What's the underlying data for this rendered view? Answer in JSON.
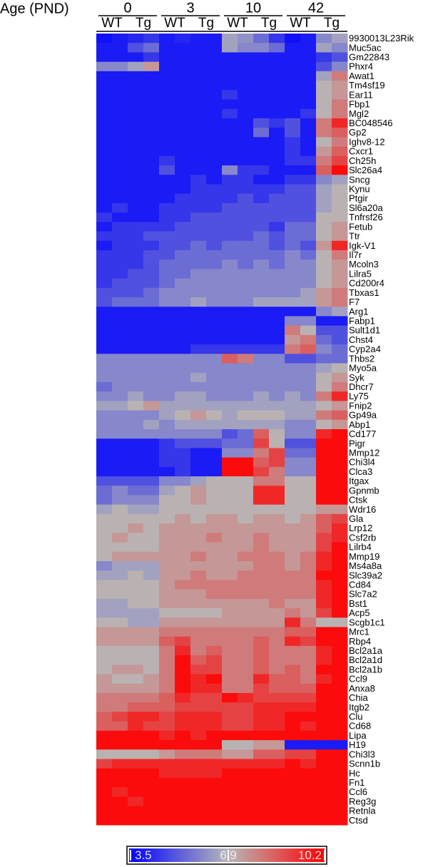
{
  "chart_data": {
    "type": "heatmap",
    "column_title": "Age (PND)",
    "groups": [
      "0",
      "3",
      "10",
      "42"
    ],
    "subgroups": [
      "WT",
      "Tg",
      "WT",
      "Tg",
      "WT",
      "Tg",
      "WT",
      "Tg"
    ],
    "rows": [
      "9930013L23Rik",
      "Muc5ac",
      "Gm22843",
      "Phxr4",
      "Awat1",
      "Tm4sf19",
      "Ear11",
      "Fbp1",
      "Mgl2",
      "BC048546",
      "Gp2",
      "Ighv8-12",
      "Cxcr1",
      "Ch25h",
      "Slc26a4",
      "Sncg",
      "Kynu",
      "Ptgir",
      "Sl6a20a",
      "Tnfrsf26",
      "Fetub",
      "Ttr",
      "Igk-V1",
      "Il7r",
      "Mcoln3",
      "Lilra5",
      "Cd200r4",
      "Tbxas1",
      "F7",
      "Arg1",
      "Fabp1",
      "Sult1d1",
      "Chst4",
      "Cyp2a4",
      "Thbs2",
      "Myo5a",
      "Syk",
      "Dhcr7",
      "Ly75",
      "Fnip2",
      "Gp49a",
      "Abp1",
      "Cd177",
      "Pigr",
      "Mmp12",
      "Chi3l4",
      "Clca3",
      "Itgax",
      "Gpnmb",
      "Ctsk",
      "Wdr16",
      "Gla",
      "Lrp12",
      "Csf2rb",
      "Lilrb4",
      "Mmp19",
      "Ms4a8a",
      "Slc39a2",
      "Cd84",
      "Slc7a2",
      "Bst1",
      "Acp5",
      "Scgb1c1",
      "Mrc1",
      "Rbp4",
      "Bcl2a1a",
      "Bcl2a1d",
      "Bcl2a1b",
      "Ccl9",
      "Anxa8",
      "Chia",
      "Itgb2",
      "Clu",
      "Cd68",
      "Lipa",
      "H19",
      "Chi3l3",
      "Scnn1b",
      "Hc",
      "Fn1",
      "Ccl6",
      "Reg3g",
      "Retnla",
      "Ctsd"
    ],
    "values": [
      [
        3.8,
        4,
        4.2,
        4.5,
        4,
        4.2,
        4,
        4,
        6.5,
        6.2,
        5.5,
        4.5,
        3.8,
        4,
        6,
        6.5
      ],
      [
        4,
        4,
        5,
        5.5,
        4,
        4,
        4,
        4,
        6.5,
        6,
        6,
        5.5,
        4,
        4,
        6.5,
        6
      ],
      [
        4,
        4,
        4,
        4.5,
        4,
        4,
        4,
        4,
        4,
        4,
        4,
        4,
        4,
        4,
        4.5,
        5
      ],
      [
        6,
        6,
        6.5,
        7.5,
        4,
        4,
        4,
        4,
        4,
        4,
        4,
        4,
        4,
        4,
        5,
        6
      ],
      [
        4,
        4,
        4,
        4,
        4,
        4,
        4,
        4,
        4,
        4,
        4,
        4,
        4,
        4,
        6.5,
        8
      ],
      [
        4,
        4,
        4,
        4,
        4,
        4,
        4,
        4,
        4,
        4,
        4,
        4,
        4,
        4,
        7,
        7.5
      ],
      [
        4,
        4,
        4,
        4,
        4,
        4,
        4,
        4,
        4.5,
        4,
        4,
        4,
        4,
        4,
        7,
        7.5
      ],
      [
        4,
        4,
        4,
        4,
        4,
        4,
        4,
        4,
        4,
        4,
        4,
        4,
        4,
        4,
        7,
        8
      ],
      [
        4,
        4,
        4,
        4,
        4,
        4,
        4,
        4,
        4.5,
        4,
        4,
        4,
        4,
        4.5,
        7,
        8
      ],
      [
        4,
        4,
        4,
        4,
        4,
        4,
        4,
        4,
        4,
        4,
        5,
        4.5,
        5,
        4,
        8,
        9.5
      ],
      [
        4,
        4,
        4,
        4,
        4,
        4,
        4,
        4,
        4,
        4,
        5.5,
        4,
        5,
        4,
        8,
        8.5
      ],
      [
        4,
        4,
        4,
        4,
        4,
        4,
        4,
        4,
        4,
        4,
        4,
        4,
        4.5,
        4,
        7,
        8
      ],
      [
        4,
        4,
        4,
        4,
        4,
        4,
        4,
        4,
        4,
        4,
        4,
        4,
        4.5,
        4,
        7.5,
        8.5
      ],
      [
        4,
        4,
        4,
        4,
        4.5,
        4,
        4,
        4,
        4,
        4,
        4,
        4,
        4.5,
        4.5,
        8,
        9
      ],
      [
        4,
        4,
        4,
        4,
        5,
        4,
        4,
        4,
        6,
        4.5,
        4.5,
        4,
        4,
        4,
        8.5,
        10
      ],
      [
        4,
        4,
        4,
        4,
        4,
        4,
        4.5,
        4,
        4.5,
        4.5,
        4,
        4,
        4.5,
        4.5,
        6,
        6.5
      ],
      [
        4,
        4,
        4,
        4,
        4,
        4,
        4.5,
        4.5,
        4.5,
        4.5,
        4.5,
        4.5,
        5,
        5,
        6.5,
        7
      ],
      [
        4,
        4,
        4,
        4,
        4,
        4.5,
        4.5,
        4.5,
        4.5,
        5,
        4.5,
        5,
        5,
        5,
        6.5,
        7
      ],
      [
        4,
        4.5,
        4,
        4,
        4.5,
        4.5,
        4.5,
        4.5,
        5,
        5,
        5,
        5,
        5,
        5,
        6.5,
        7
      ],
      [
        4.5,
        4,
        4,
        4,
        4.5,
        4.5,
        5,
        5,
        5,
        5,
        5,
        5,
        5,
        5,
        7,
        7
      ],
      [
        4,
        4.5,
        4.5,
        4.5,
        4.5,
        5,
        5,
        5,
        5,
        5,
        5,
        4.5,
        5.5,
        5.5,
        7,
        7.5
      ],
      [
        4.5,
        4.5,
        4.5,
        5,
        5,
        5,
        5,
        5,
        5,
        5,
        5.5,
        5,
        5.5,
        5.5,
        7,
        7.5
      ],
      [
        4,
        4.5,
        4.5,
        4.5,
        5,
        5,
        5.5,
        5,
        5.5,
        5.5,
        5.5,
        5,
        5.5,
        5,
        7.5,
        9.5
      ],
      [
        4.5,
        4.5,
        4.5,
        5,
        5,
        5.5,
        5.5,
        5.5,
        5.5,
        5.5,
        5.5,
        5.5,
        6,
        5.5,
        7,
        8
      ],
      [
        4.5,
        4.5,
        4.5,
        5,
        5.5,
        5.5,
        5.5,
        5.5,
        6,
        5.5,
        6,
        5.5,
        6,
        6,
        7,
        7.5
      ],
      [
        4.5,
        4.5,
        5,
        5,
        5.5,
        5.5,
        6,
        6,
        6,
        6,
        6,
        6,
        6,
        6,
        7,
        7.5
      ],
      [
        4.5,
        5,
        5,
        5,
        5.5,
        6,
        6,
        6,
        6,
        6,
        6,
        6,
        6,
        6,
        7,
        7.5
      ],
      [
        5,
        5,
        5,
        5.5,
        6,
        6,
        6,
        6,
        6,
        6,
        6,
        6,
        6,
        6.5,
        7.5,
        8
      ],
      [
        5,
        5.5,
        5.5,
        5.5,
        6,
        6,
        6.5,
        6,
        6,
        6,
        6.5,
        6.5,
        6.5,
        6.5,
        7.5,
        8
      ],
      [
        4,
        4,
        4,
        4,
        4,
        4,
        4,
        4,
        4,
        4,
        4,
        4,
        4,
        4,
        6,
        6.5
      ],
      [
        4,
        4,
        4,
        4,
        4,
        4,
        4,
        4,
        4,
        4,
        4,
        4,
        6,
        6,
        4,
        4
      ],
      [
        4,
        4,
        4,
        4,
        4,
        4,
        4,
        4,
        4,
        4,
        4,
        4,
        8,
        7,
        5,
        5
      ],
      [
        4,
        4,
        4,
        4,
        4,
        4,
        4,
        4,
        4,
        4,
        4,
        4,
        7.5,
        8,
        5.5,
        5
      ],
      [
        4,
        4,
        4,
        4,
        4,
        4,
        4.5,
        4.5,
        4.5,
        4.5,
        4.5,
        4.5,
        8,
        8.5,
        6,
        5.5
      ],
      [
        6,
        6,
        6,
        6,
        6,
        6,
        6,
        6,
        8.5,
        8,
        6,
        6,
        5,
        5,
        5.5,
        5.5
      ],
      [
        6,
        6,
        6,
        6,
        6,
        6,
        6,
        6,
        6,
        6,
        6,
        6,
        6,
        6,
        6.5,
        7
      ],
      [
        6,
        6,
        6,
        6,
        6,
        6,
        6.5,
        6,
        6,
        6,
        6,
        6,
        6,
        6,
        7,
        7.5
      ],
      [
        5.5,
        6,
        6,
        6,
        6,
        6,
        6,
        6,
        6,
        6,
        6,
        6,
        6,
        6,
        7,
        8
      ],
      [
        6,
        6,
        6.5,
        6,
        6,
        6.5,
        6.5,
        6,
        6,
        6,
        6.5,
        6,
        6.5,
        6,
        8,
        9.5
      ],
      [
        6.5,
        6.5,
        7,
        7.5,
        6.5,
        6.5,
        6.5,
        6.5,
        6.5,
        6.5,
        6.5,
        6.5,
        6.5,
        6.5,
        7,
        7.5
      ],
      [
        6,
        6,
        6,
        6,
        6.5,
        7,
        7.5,
        7,
        6.5,
        7,
        7,
        7,
        6.5,
        6.5,
        8,
        8.5
      ],
      [
        6,
        6,
        6,
        6.5,
        6,
        6.5,
        6.5,
        6.5,
        6.5,
        6.5,
        6.5,
        6.5,
        6,
        6,
        7,
        7.5
      ],
      [
        6,
        6,
        6,
        6,
        6,
        6,
        6,
        6,
        5,
        5.5,
        8.5,
        7,
        6,
        6,
        9.5,
        10
      ],
      [
        4,
        4,
        4,
        4,
        4.5,
        5,
        5,
        5,
        5.5,
        5.5,
        9,
        7,
        5,
        5,
        10,
        10
      ],
      [
        4,
        4,
        4,
        4,
        4.5,
        4.5,
        4,
        4,
        6,
        6,
        8,
        9,
        5.5,
        5.5,
        10,
        10
      ],
      [
        4,
        4,
        4,
        4,
        4.5,
        4.5,
        4,
        4,
        10,
        10,
        8.5,
        9,
        6,
        6,
        10,
        10
      ],
      [
        4,
        4,
        4,
        4,
        4,
        4.5,
        4,
        4,
        10,
        10,
        9,
        8,
        6,
        6,
        10,
        10
      ],
      [
        5,
        5,
        5,
        5,
        6,
        6,
        6.5,
        7,
        7,
        7,
        8,
        8,
        7,
        7,
        10,
        10
      ],
      [
        5.5,
        6,
        5.5,
        5.5,
        6.5,
        7,
        7.5,
        7,
        7,
        7,
        9.5,
        9.5,
        7,
        7,
        10,
        10
      ],
      [
        5.5,
        6,
        6,
        6,
        7,
        7,
        7.5,
        7,
        7,
        7,
        9.5,
        9.5,
        7,
        7,
        10,
        10
      ],
      [
        6.5,
        7,
        6.5,
        6.5,
        7,
        7,
        7,
        7,
        7,
        7,
        7,
        7,
        7,
        7,
        7.5,
        7.5
      ],
      [
        7,
        7,
        7,
        7,
        7,
        7.5,
        7,
        7.5,
        7.5,
        7,
        7.5,
        7.5,
        7,
        7.5,
        8.5,
        9
      ],
      [
        7,
        7,
        7.5,
        7,
        7.5,
        7.5,
        7.5,
        7.5,
        7.5,
        7.5,
        7.5,
        7.5,
        7.5,
        7.5,
        8.5,
        9.5
      ],
      [
        7,
        7.5,
        7,
        7,
        7.5,
        7.5,
        7.5,
        8,
        7.5,
        7.5,
        8,
        7.5,
        7.5,
        7.5,
        9,
        9.5
      ],
      [
        7,
        7,
        7,
        7,
        7.5,
        7.5,
        7.5,
        7.5,
        7.5,
        7.5,
        8,
        7.5,
        7.5,
        7.5,
        9,
        10
      ],
      [
        7,
        7.5,
        7.5,
        7.5,
        7.5,
        7.5,
        8,
        7.5,
        7.5,
        8,
        8,
        8,
        7.5,
        8,
        9.5,
        10
      ],
      [
        6,
        6.5,
        6.5,
        6.5,
        7.5,
        7.5,
        7.5,
        7.5,
        7.5,
        7.5,
        8,
        8,
        7.5,
        8,
        9.5,
        10
      ],
      [
        6.5,
        6.5,
        7,
        6.5,
        7.5,
        7.5,
        8,
        7.5,
        7.5,
        8,
        8,
        8,
        8,
        8,
        10,
        10
      ],
      [
        7,
        7,
        7,
        7,
        7.5,
        8,
        8,
        8,
        8,
        8,
        8,
        8,
        8,
        8,
        9.5,
        10
      ],
      [
        7,
        7,
        7,
        7,
        7.5,
        7.5,
        7.5,
        8,
        8,
        8,
        8,
        8,
        8,
        8,
        9.5,
        10
      ],
      [
        6.5,
        6.5,
        7,
        7,
        7.5,
        7.5,
        7.5,
        7.5,
        7.5,
        7.5,
        7.5,
        8,
        7.5,
        7.5,
        9.5,
        10
      ],
      [
        6.5,
        6.5,
        6.5,
        6.5,
        7,
        7,
        7,
        7,
        7.5,
        7.5,
        7.5,
        7.5,
        8,
        7.5,
        9,
        10
      ],
      [
        7,
        7,
        6.5,
        6.5,
        7.5,
        7.5,
        7.5,
        7.5,
        7.5,
        7.5,
        7.5,
        7.5,
        9.5,
        8,
        7,
        7
      ],
      [
        7.5,
        7.5,
        7.5,
        7.5,
        8,
        8,
        8,
        8,
        8,
        8,
        8,
        8,
        8.5,
        8.5,
        10,
        10
      ],
      [
        7.5,
        7.5,
        7.5,
        7.5,
        8.5,
        9,
        8,
        8,
        8,
        8,
        8.5,
        8,
        9.5,
        9,
        10,
        10
      ],
      [
        7,
        7,
        7,
        7,
        8,
        9.5,
        8,
        8.5,
        8,
        8,
        8.5,
        8,
        8,
        8,
        9.5,
        10
      ],
      [
        7,
        7,
        7,
        7,
        8,
        10,
        8.5,
        9,
        8,
        8,
        8.5,
        8,
        8,
        8,
        9.5,
        10
      ],
      [
        7,
        7.5,
        7.5,
        7,
        8,
        10,
        9,
        9,
        8,
        8,
        8.5,
        8,
        8.5,
        8,
        10,
        10
      ],
      [
        7.5,
        7,
        7,
        7.5,
        8,
        10,
        9.5,
        10,
        8,
        8,
        9.5,
        8.5,
        8.5,
        8,
        9.5,
        10
      ],
      [
        7.5,
        7.5,
        7.5,
        7.5,
        8,
        10,
        9.5,
        9.5,
        8,
        8,
        9,
        8.5,
        8.5,
        8.5,
        10,
        10
      ],
      [
        8,
        8,
        8,
        8,
        8.5,
        9.5,
        9,
        9,
        10,
        9.5,
        9,
        9,
        9,
        9,
        10,
        10
      ],
      [
        8,
        8,
        8.5,
        8.5,
        8.5,
        9,
        9,
        9,
        9,
        9,
        9.5,
        9.5,
        9.5,
        9.5,
        10,
        10
      ],
      [
        8.5,
        9,
        9.5,
        9.5,
        9,
        9.5,
        9.5,
        9.5,
        9,
        9,
        9.5,
        9.5,
        10,
        10,
        10,
        10
      ],
      [
        8.5,
        8.5,
        9.5,
        9,
        9,
        9.5,
        9.5,
        9.5,
        9,
        9,
        9.5,
        9.5,
        10,
        9.5,
        10,
        10
      ],
      [
        10,
        10,
        10,
        10,
        9.5,
        10,
        9.5,
        10,
        10,
        10,
        10,
        10,
        10,
        10,
        10,
        10
      ],
      [
        10,
        10,
        10,
        10,
        10,
        10,
        10,
        10,
        7,
        7,
        7.5,
        7.5,
        4,
        4,
        4,
        4
      ],
      [
        7,
        7,
        7,
        7,
        7.5,
        8,
        8,
        8,
        7.5,
        7.5,
        8.5,
        8.5,
        9,
        9,
        10,
        10
      ],
      [
        9,
        9.5,
        9.5,
        9.5,
        9.5,
        9.5,
        9.5,
        9.5,
        9.5,
        9.5,
        9.5,
        9.5,
        10,
        9.5,
        10,
        10
      ],
      [
        10,
        10,
        10,
        10,
        9.5,
        9.5,
        9.5,
        9.5,
        10,
        10,
        10,
        10,
        10,
        10,
        10,
        10
      ],
      [
        10,
        10,
        10,
        10,
        10,
        10,
        10,
        10,
        10,
        10,
        10,
        10,
        10,
        10,
        10,
        10
      ],
      [
        10,
        9.5,
        10,
        10,
        10,
        10,
        10,
        10,
        10,
        10,
        10,
        10,
        10,
        10,
        10,
        10
      ],
      [
        10,
        10,
        9.5,
        10,
        10,
        10,
        10,
        10,
        10,
        10,
        10,
        10,
        10,
        10,
        10,
        10
      ],
      [
        10,
        10,
        10,
        10,
        10,
        10,
        10,
        10,
        10,
        10,
        10,
        10,
        10,
        10,
        10,
        10
      ],
      [
        10,
        10,
        10,
        10,
        10,
        10,
        10,
        10,
        10,
        10,
        10,
        10,
        10,
        10,
        10,
        10
      ]
    ],
    "zlim": [
      3.5,
      10.2
    ],
    "colorbar_ticks": [
      3.5,
      6.9,
      10.2
    ],
    "colors": [
      "#0000ff",
      "#b8b8b8",
      "#ff0000"
    ]
  }
}
